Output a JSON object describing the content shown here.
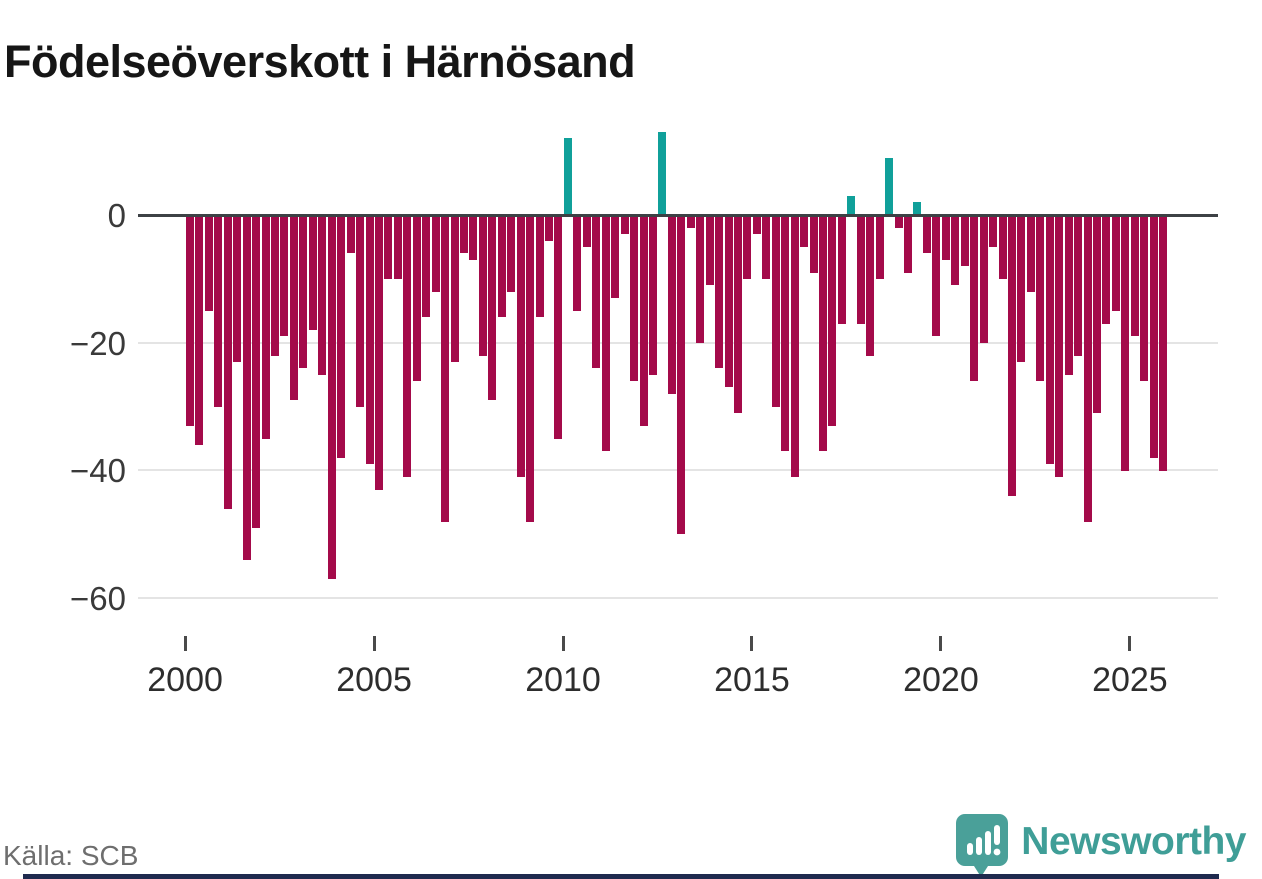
{
  "title": "Födelseöverskott i Härnösand",
  "source": "Källa: SCB",
  "brand": {
    "name": "Newsworthy"
  },
  "colors": {
    "negative_bar": "#a40a4a",
    "positive_bar": "#10a09a",
    "zero_axis": "#3d4145",
    "gridline": "#e4e4e4",
    "brand_teal": "#3f9e97",
    "footer_accent": "#1f2a4e"
  },
  "chart_data": {
    "type": "bar",
    "title": "Födelseöverskott i Härnösand",
    "frequency": "quarterly",
    "start": "2000-Q1",
    "end": "2025-Q4",
    "ylim": [
      -62,
      15
    ],
    "grid": "horizontal",
    "y_ticks": [
      0,
      -20,
      -40,
      -60
    ],
    "y_tick_labels": [
      "0",
      "−20",
      "−40",
      "−60"
    ],
    "x_tick_labels": [
      "2000",
      "2005",
      "2010",
      "2015",
      "2020",
      "2025"
    ],
    "values": [
      -33,
      -36,
      -15,
      -30,
      -46,
      -23,
      -54,
      -49,
      -35,
      -22,
      -19,
      -29,
      -24,
      -18,
      -25,
      -57,
      -38,
      -6,
      -30,
      -39,
      -43,
      -10,
      -10,
      -41,
      -26,
      -16,
      -12,
      -48,
      -23,
      -6,
      -7,
      -22,
      -29,
      -16,
      -12,
      -41,
      -48,
      -16,
      -4,
      -35,
      12,
      -15,
      -5,
      -24,
      -37,
      -13,
      -3,
      -26,
      -33,
      -25,
      13,
      -28,
      -50,
      -2,
      -20,
      -11,
      -24,
      -27,
      -31,
      -10,
      -3,
      -10,
      -30,
      -37,
      -41,
      -5,
      -9,
      -37,
      -33,
      -17,
      3,
      -17,
      -22,
      -10,
      9,
      -2,
      -9,
      2,
      -6,
      -19,
      -7,
      -11,
      -8,
      -26,
      -20,
      -5,
      -10,
      -44,
      -23,
      -12,
      -26,
      -39,
      -41,
      -25,
      -22,
      -48,
      -31,
      -17,
      -15,
      -40,
      -19,
      -26,
      -38,
      -40
    ]
  }
}
